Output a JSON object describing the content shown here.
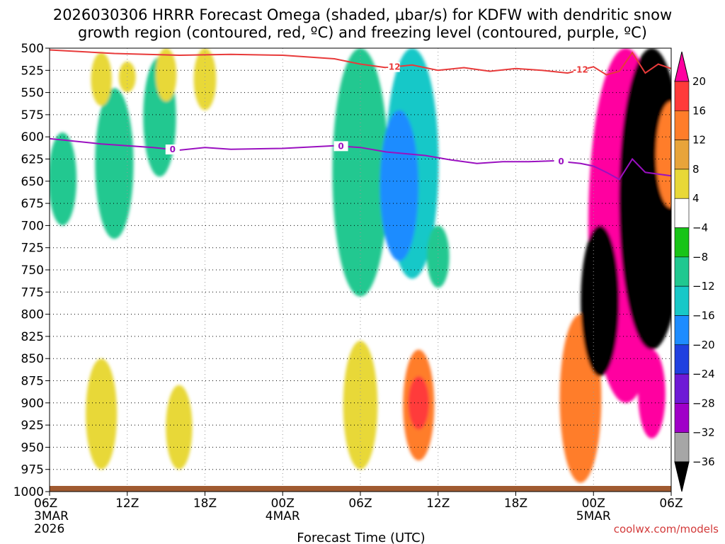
{
  "chart_data": {
    "type": "heatmap",
    "title_line1": "2026030306 HRRR Forecast Omega (shaded, μbar/s) for KDFW with dendritic snow",
    "title_line2": "growth region (contoured, red, ºC) and freezing level (contoured, purple, ºC)",
    "xlabel": "Forecast Time (UTC)",
    "credit": "coolwx.com/models",
    "y_axis": {
      "unit": "hPa",
      "ticks": [
        500,
        525,
        550,
        575,
        600,
        625,
        650,
        675,
        700,
        725,
        750,
        775,
        800,
        825,
        850,
        875,
        900,
        925,
        950,
        975,
        1000
      ],
      "range": [
        1000,
        500
      ]
    },
    "x_axis": {
      "range_hours": [
        0,
        48
      ],
      "ticks": [
        {
          "h": 0,
          "label": "06Z",
          "sub1": "3MAR",
          "sub2": "2026"
        },
        {
          "h": 6,
          "label": "12Z",
          "sub1": "",
          "sub2": ""
        },
        {
          "h": 12,
          "label": "18Z",
          "sub1": "",
          "sub2": ""
        },
        {
          "h": 18,
          "label": "00Z",
          "sub1": "4MAR",
          "sub2": ""
        },
        {
          "h": 24,
          "label": "06Z",
          "sub1": "",
          "sub2": ""
        },
        {
          "h": 30,
          "label": "12Z",
          "sub1": "",
          "sub2": ""
        },
        {
          "h": 36,
          "label": "18Z",
          "sub1": "",
          "sub2": ""
        },
        {
          "h": 42,
          "label": "00Z",
          "sub1": "5MAR",
          "sub2": ""
        },
        {
          "h": 48,
          "label": "06Z",
          "sub1": "",
          "sub2": ""
        }
      ]
    },
    "colorbar": {
      "labels": [
        "20",
        "16",
        "12",
        "8",
        "4",
        "−4",
        "−8",
        "−12",
        "−16",
        "−20",
        "−24",
        "−28",
        "−32",
        "−36"
      ],
      "colors": [
        "#ff00a0",
        "#ff3a3a",
        "#ff7d2a",
        "#e8a43a",
        "#e8d838",
        "#ffffff",
        "#18c418",
        "#20c890",
        "#18c8c8",
        "#1e8cff",
        "#2040e0",
        "#6e1ad6",
        "#a000c8",
        "#a6a6a6",
        "#000000"
      ]
    },
    "series": [
      {
        "name": "-12",
        "color": "#e83a3a",
        "points": [
          [
            0,
            502
          ],
          [
            5,
            506
          ],
          [
            10,
            508
          ],
          [
            14,
            507
          ],
          [
            18,
            508
          ],
          [
            22,
            512
          ],
          [
            24,
            518
          ],
          [
            26,
            522
          ],
          [
            28,
            519
          ],
          [
            30,
            525
          ],
          [
            32,
            522
          ],
          [
            34,
            526
          ],
          [
            36,
            523
          ],
          [
            38,
            525
          ],
          [
            40,
            528
          ],
          [
            42,
            521
          ],
          [
            43,
            530
          ],
          [
            44,
            526
          ],
          [
            45,
            505
          ],
          [
            46,
            528
          ],
          [
            47,
            518
          ],
          [
            48,
            523
          ]
        ],
        "labels_at_hours": [
          26.5,
          41
        ]
      },
      {
        "name": "0",
        "color": "#9a10c0",
        "points": [
          [
            0,
            602
          ],
          [
            4,
            608
          ],
          [
            8,
            612
          ],
          [
            10,
            615
          ],
          [
            12,
            612
          ],
          [
            14,
            614
          ],
          [
            18,
            613
          ],
          [
            22,
            610
          ],
          [
            24,
            612
          ],
          [
            26,
            617
          ],
          [
            29,
            621
          ],
          [
            31,
            626
          ],
          [
            33,
            630
          ],
          [
            35,
            628
          ],
          [
            37,
            628
          ],
          [
            39,
            627
          ],
          [
            41,
            630
          ],
          [
            42,
            633
          ],
          [
            43,
            640
          ],
          [
            44,
            648
          ],
          [
            45,
            625
          ],
          [
            46,
            640
          ],
          [
            48,
            644
          ]
        ],
        "labels_at_hours": [
          9.5,
          22.5,
          39.5
        ]
      }
    ],
    "shaded_regions": [
      {
        "hour": 1,
        "p_top": 595,
        "p_bot": 700,
        "value": -8
      },
      {
        "hour": 5,
        "p_top": 545,
        "p_bot": 715,
        "value": -8
      },
      {
        "hour": 8.5,
        "p_top": 510,
        "p_bot": 645,
        "value": -8
      },
      {
        "hour": 4,
        "p_top": 505,
        "p_bot": 565,
        "value": 4
      },
      {
        "hour": 6,
        "p_top": 515,
        "p_bot": 550,
        "value": 4
      },
      {
        "hour": 9,
        "p_top": 500,
        "p_bot": 560,
        "value": 4
      },
      {
        "hour": 12,
        "p_top": 500,
        "p_bot": 570,
        "value": 4
      },
      {
        "hour": 24,
        "p_top": 500,
        "p_bot": 780,
        "value": -8
      },
      {
        "hour": 28,
        "p_top": 500,
        "p_bot": 760,
        "value": -12
      },
      {
        "hour": 27,
        "p_top": 570,
        "p_bot": 740,
        "value": -16
      },
      {
        "hour": 30,
        "p_top": 700,
        "p_bot": 770,
        "value": -8
      },
      {
        "hour": 28.5,
        "p_top": 840,
        "p_bot": 965,
        "value": 12
      },
      {
        "hour": 28.5,
        "p_top": 870,
        "p_bot": 930,
        "value": 16
      },
      {
        "hour": 24,
        "p_top": 830,
        "p_bot": 975,
        "value": 4
      },
      {
        "hour": 10,
        "p_top": 880,
        "p_bot": 975,
        "value": 4
      },
      {
        "hour": 4,
        "p_top": 850,
        "p_bot": 975,
        "value": 4
      },
      {
        "hour": 41,
        "p_top": 800,
        "p_bot": 990,
        "value": 12
      },
      {
        "hour": 44.5,
        "p_top": 500,
        "p_bot": 900,
        "value": 20
      },
      {
        "hour": 46.5,
        "p_top": 500,
        "p_bot": 840,
        "value": -36
      },
      {
        "hour": 42.5,
        "p_top": 700,
        "p_bot": 870,
        "value": -36
      },
      {
        "hour": 46.5,
        "p_top": 840,
        "p_bot": 940,
        "value": 20
      },
      {
        "hour": 48,
        "p_top": 560,
        "p_bot": 680,
        "value": 12
      }
    ],
    "terrain_color": "#a05a30",
    "grid": "dotted"
  }
}
